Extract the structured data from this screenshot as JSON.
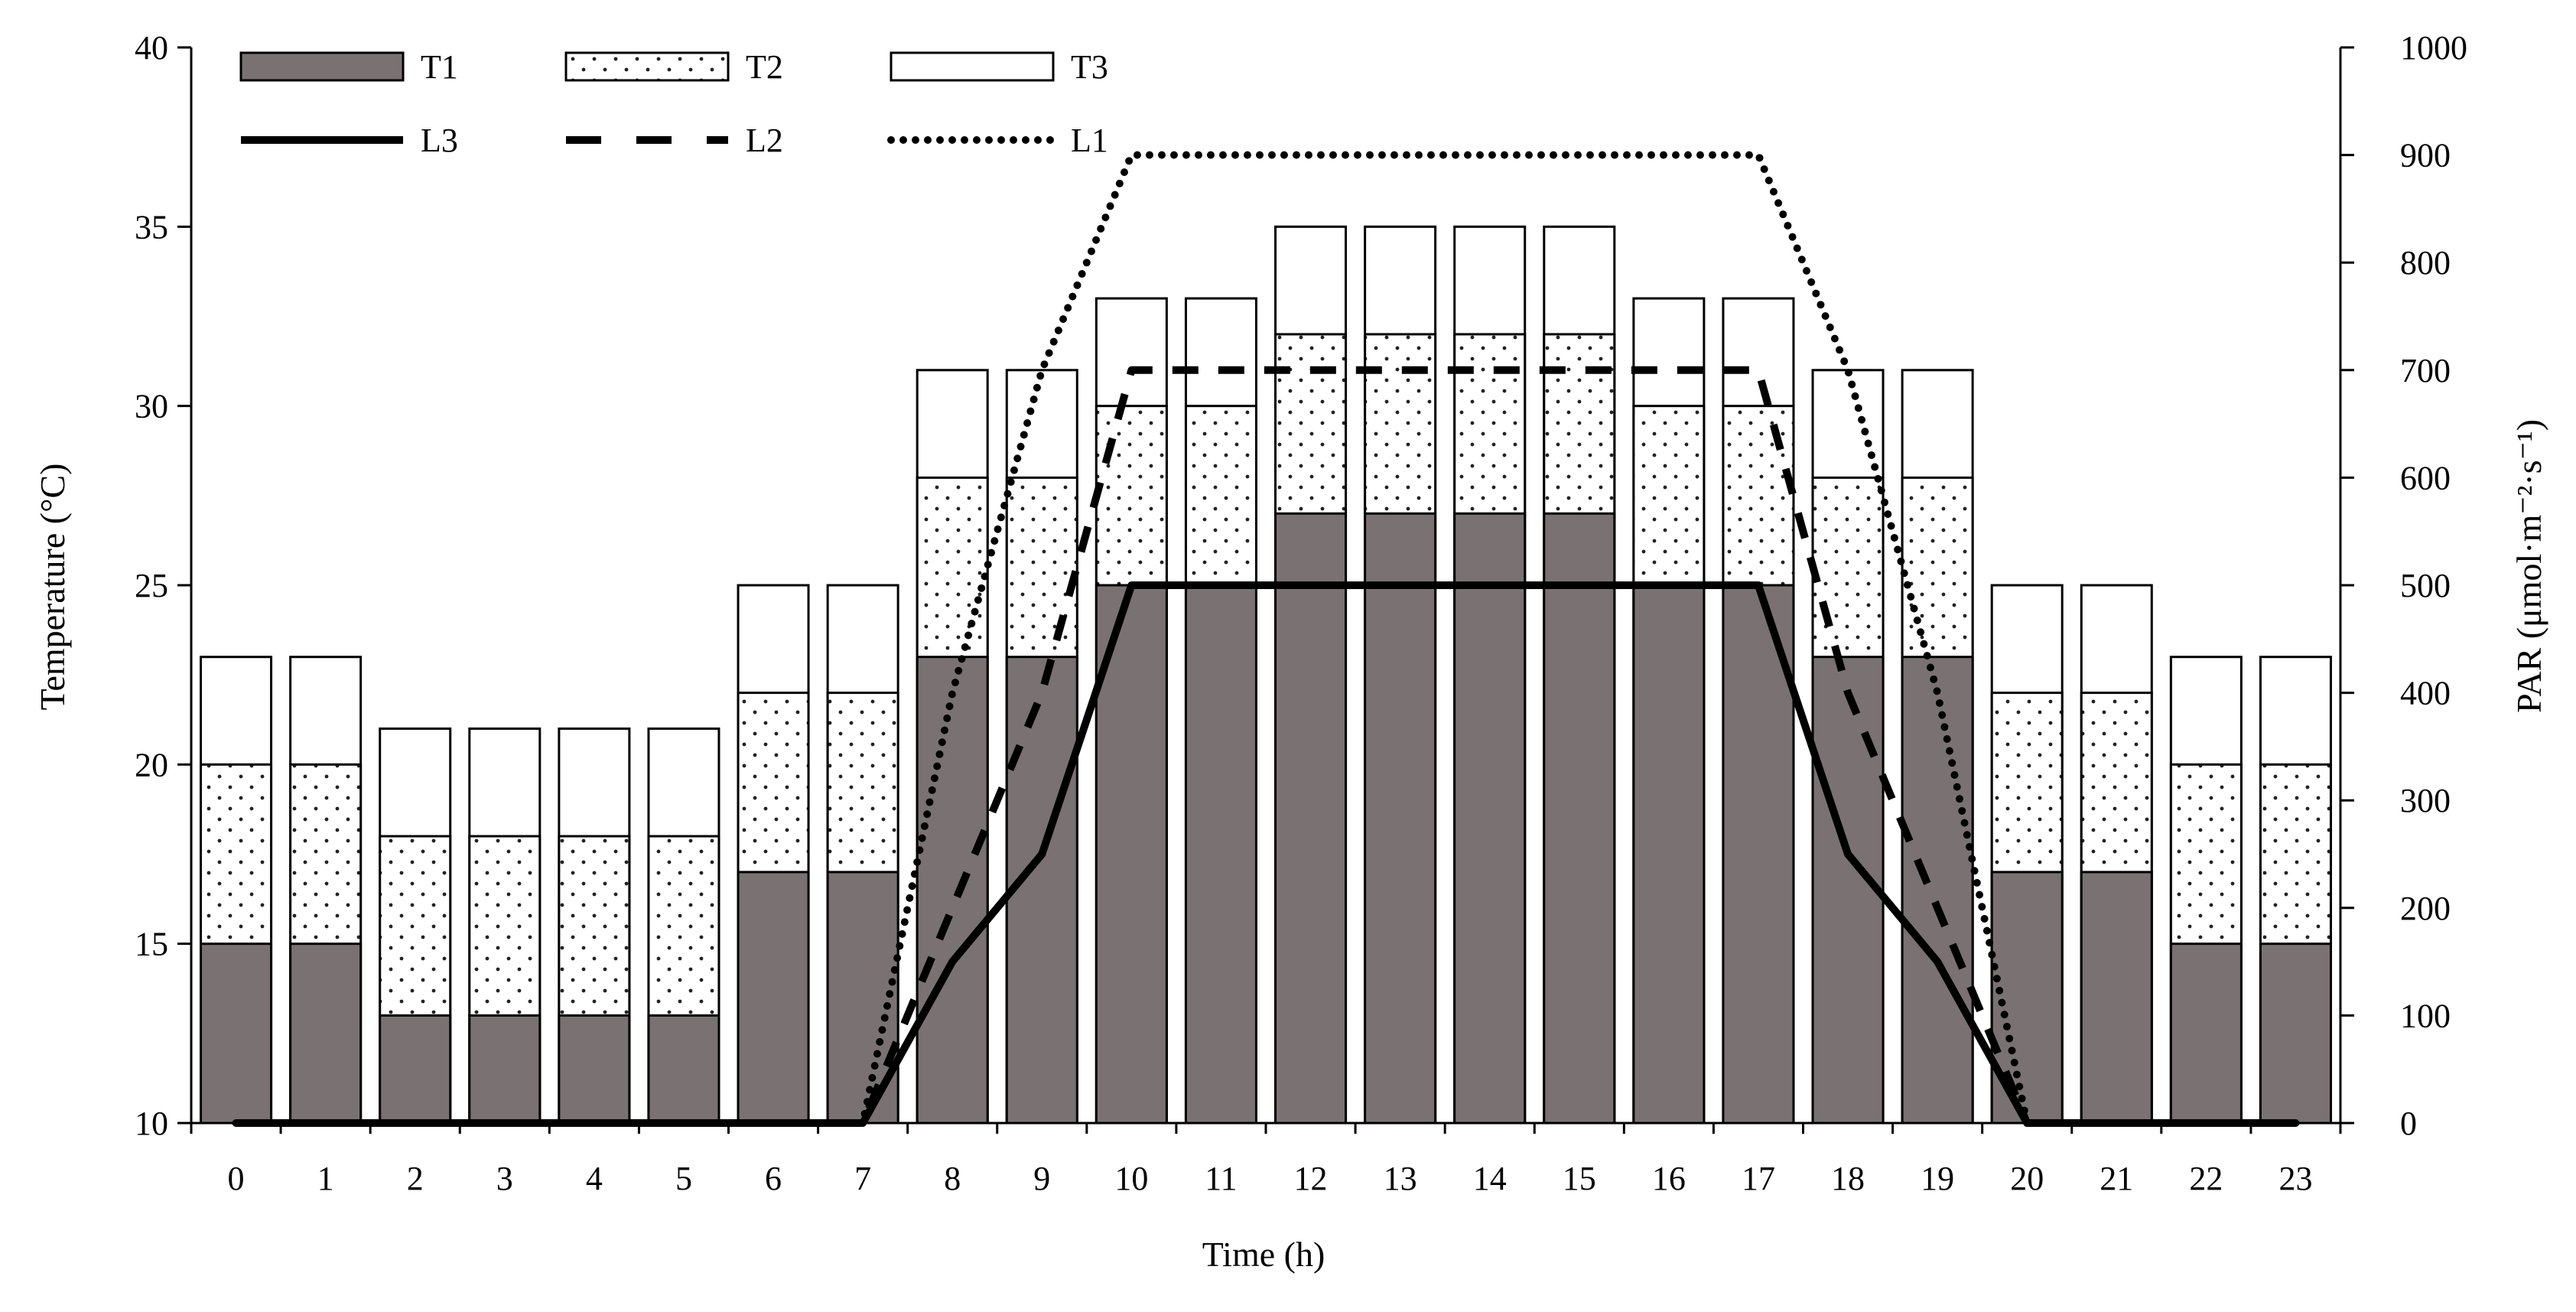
{
  "chart_data": {
    "type": "bar+line",
    "x": [
      0,
      1,
      2,
      3,
      4,
      5,
      6,
      7,
      8,
      9,
      10,
      11,
      12,
      13,
      14,
      15,
      16,
      17,
      18,
      19,
      20,
      21,
      22,
      23
    ],
    "xlabel": "Time (h)",
    "ylabel_left": "Temperature (°C)",
    "ylabel_right": "PAR (μmol·m⁻²·s⁻¹)",
    "ylim_left": [
      10,
      40
    ],
    "yticks_left": [
      10,
      15,
      20,
      25,
      30,
      35,
      40
    ],
    "ylim_right": [
      0,
      1000
    ],
    "yticks_right": [
      0,
      100,
      200,
      300,
      400,
      500,
      600,
      700,
      800,
      900,
      1000
    ],
    "bar_series": [
      {
        "name": "T1",
        "fill": "#7a7272",
        "pattern": "solid",
        "values": [
          15,
          15,
          13,
          13,
          13,
          13,
          17,
          17,
          23,
          23,
          25,
          25,
          27,
          27,
          27,
          27,
          25,
          25,
          23,
          23,
          17,
          17,
          15,
          15
        ]
      },
      {
        "name": "T2",
        "fill": "#ffffff",
        "pattern": "dotted",
        "values": [
          20,
          20,
          18,
          18,
          18,
          18,
          22,
          22,
          28,
          28,
          30,
          30,
          32,
          32,
          32,
          32,
          30,
          30,
          28,
          28,
          22,
          22,
          20,
          20
        ]
      },
      {
        "name": "T3",
        "fill": "#ffffff",
        "pattern": "blank",
        "values": [
          23,
          23,
          21,
          21,
          21,
          21,
          25,
          25,
          31,
          31,
          33,
          33,
          35,
          35,
          35,
          35,
          33,
          33,
          31,
          31,
          25,
          25,
          23,
          23
        ]
      }
    ],
    "line_series": [
      {
        "name": "L3",
        "style": "solid",
        "values": [
          0,
          0,
          0,
          0,
          0,
          0,
          0,
          0,
          150,
          250,
          500,
          500,
          500,
          500,
          500,
          500,
          500,
          500,
          250,
          150,
          0,
          0,
          0,
          0
        ]
      },
      {
        "name": "L2",
        "style": "dashed",
        "values": [
          0,
          0,
          0,
          0,
          0,
          0,
          0,
          0,
          200,
          400,
          700,
          700,
          700,
          700,
          700,
          700,
          700,
          700,
          400,
          200,
          0,
          0,
          0,
          0
        ]
      },
      {
        "name": "L1",
        "style": "dotted",
        "values": [
          0,
          0,
          0,
          0,
          0,
          0,
          0,
          0,
          400,
          700,
          900,
          900,
          900,
          900,
          900,
          900,
          900,
          900,
          700,
          400,
          0,
          0,
          0,
          0
        ]
      }
    ],
    "legend": [
      {
        "label": "T1",
        "kind": "bar",
        "series": "T1"
      },
      {
        "label": "T2",
        "kind": "bar",
        "series": "T2"
      },
      {
        "label": "T3",
        "kind": "bar",
        "series": "T3"
      },
      {
        "label": "L3",
        "kind": "line",
        "series": "L3"
      },
      {
        "label": "L2",
        "kind": "line",
        "series": "L2"
      },
      {
        "label": "L1",
        "kind": "line",
        "series": "L1"
      }
    ],
    "legend_position": "top-left"
  }
}
